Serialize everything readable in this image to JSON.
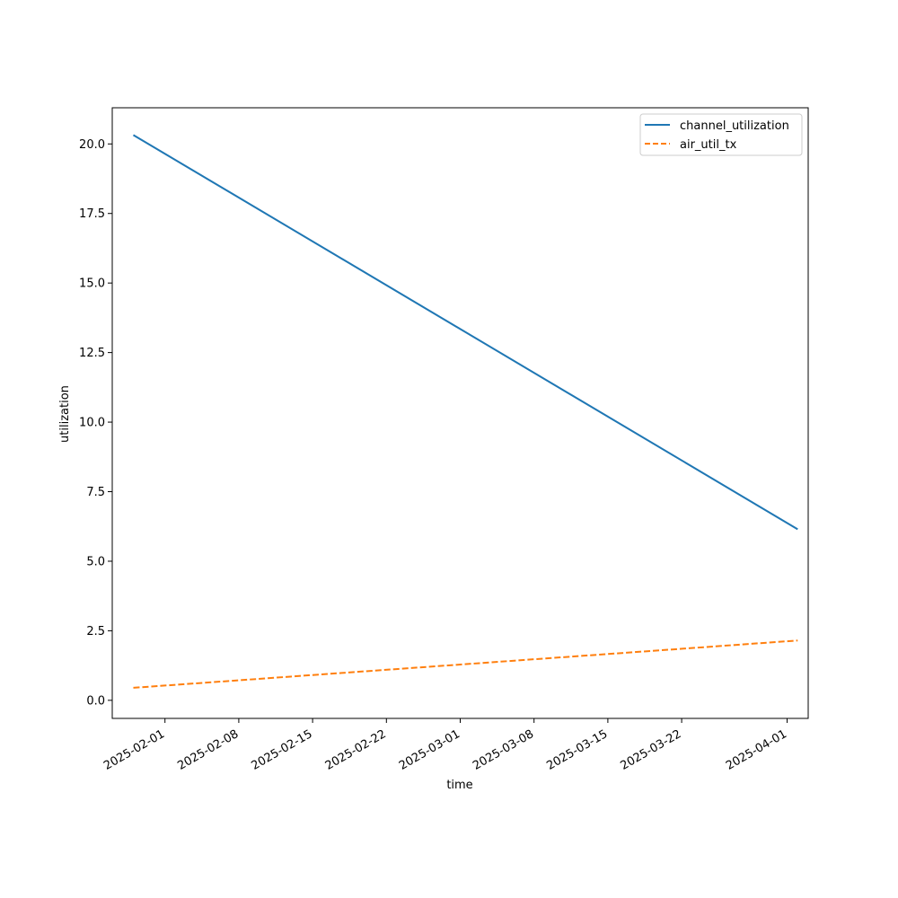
{
  "chart_data": {
    "type": "line",
    "title": "",
    "xlabel": "time",
    "ylabel": "utilization",
    "xlim": [
      "2025-01-27",
      "2025-04-03"
    ],
    "ylim": [
      -0.65,
      21.3
    ],
    "x_ticks": [
      "2025-02-01",
      "2025-02-08",
      "2025-02-15",
      "2025-02-22",
      "2025-03-01",
      "2025-03-08",
      "2025-03-15",
      "2025-03-22",
      "2025-04-01"
    ],
    "y_ticks": [
      "0.0",
      "2.5",
      "5.0",
      "7.5",
      "10.0",
      "12.5",
      "15.0",
      "17.5",
      "20.0"
    ],
    "grid": false,
    "legend_position": "top-right",
    "series": [
      {
        "name": "channel_utilization",
        "color": "#1f77b4",
        "line_style": "solid",
        "x": [
          "2025-01-29",
          "2025-04-02"
        ],
        "y": [
          20.32,
          6.15
        ]
      },
      {
        "name": "air_util_tx",
        "color": "#ff7f0e",
        "line_style": "dashed",
        "x": [
          "2025-01-29",
          "2025-04-02"
        ],
        "y": [
          0.45,
          2.15
        ]
      }
    ]
  }
}
